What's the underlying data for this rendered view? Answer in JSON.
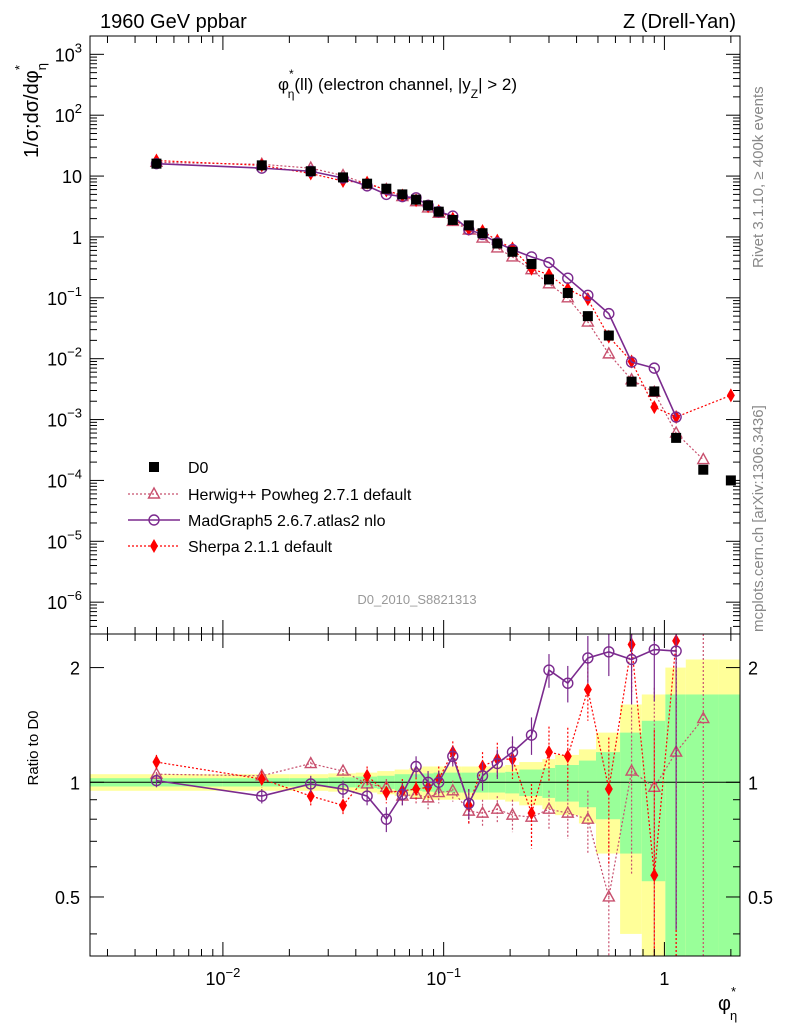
{
  "chart_data": {
    "type": "scatter",
    "header_left": "1960 GeV ppbar",
    "header_right": "Z (Drell-Yan)",
    "title": {
      "main": "φ",
      "sup": "*",
      "sub": "η",
      "rest": "(ll) (electron channel, |y",
      "sub2": "Z",
      "end": "| > 2)"
    },
    "ylabel": "1/σ;dσ/dφ",
    "ylabel_sub": "η",
    "ylabel_sup": "*",
    "ratio_ylabel": "Ratio to D0",
    "xlabel": "φ",
    "xlabel_sup": "*",
    "xlabel_sub": "η",
    "side_text_top": "Rivet 3.1.10, ≥ 400k events",
    "side_text_bottom": "mcplots.cern.ch [arXiv:1306.3436]",
    "watermark": "D0_2010_S8821313",
    "xlim": [
      0.0025,
      2.2
    ],
    "ylim": [
      3e-07,
      2000
    ],
    "ratio_ylim": [
      0.35,
      2.45
    ],
    "x_ticks": [
      {
        "v": 0.01,
        "base": "10",
        "exp": "−2"
      },
      {
        "v": 0.1,
        "base": "10",
        "exp": "−1"
      },
      {
        "v": 1,
        "base": "1",
        "exp": ""
      }
    ],
    "y_ticks": [
      {
        "v": 1000,
        "base": "10",
        "exp": "3"
      },
      {
        "v": 100,
        "base": "10",
        "exp": "2"
      },
      {
        "v": 10,
        "base": "10",
        "exp": ""
      },
      {
        "v": 1,
        "base": "1",
        "exp": ""
      },
      {
        "v": 0.1,
        "base": "10",
        "exp": "−1"
      },
      {
        "v": 0.01,
        "base": "10",
        "exp": "−2"
      },
      {
        "v": 0.001,
        "base": "10",
        "exp": "−3"
      },
      {
        "v": 0.0001,
        "base": "10",
        "exp": "−4"
      },
      {
        "v": 1e-05,
        "base": "10",
        "exp": "−5"
      },
      {
        "v": 1e-06,
        "base": "10",
        "exp": "−6"
      }
    ],
    "ratio_ticks": [
      {
        "v": 0.5,
        "label": "0.5"
      },
      {
        "v": 1,
        "label": "1"
      },
      {
        "v": 2,
        "label": "2"
      }
    ],
    "x": [
      0.005,
      0.015,
      0.025,
      0.035,
      0.045,
      0.055,
      0.065,
      0.075,
      0.085,
      0.095,
      0.11,
      0.13,
      0.15,
      0.175,
      0.205,
      0.25,
      0.3,
      0.365,
      0.45,
      0.56,
      0.71,
      0.9,
      1.13,
      1.5,
      2.0
    ],
    "x_edges": [
      0.0,
      0.01,
      0.02,
      0.03,
      0.04,
      0.05,
      0.06,
      0.07,
      0.08,
      0.09,
      0.1,
      0.12,
      0.14,
      0.16,
      0.19,
      0.22,
      0.28,
      0.32,
      0.41,
      0.49,
      0.63,
      0.79,
      1.01,
      1.25,
      1.75,
      2.25
    ],
    "data_band": {
      "stat": [
        0.025,
        0.025,
        0.025,
        0.03,
        0.035,
        0.04,
        0.05,
        0.05,
        0.055,
        0.06,
        0.06,
        0.06,
        0.06,
        0.06,
        0.065,
        0.08,
        0.09,
        0.11,
        0.14,
        0.2,
        0.35,
        0.45,
        0.7,
        0.7,
        0.7
      ],
      "total": [
        0.05,
        0.05,
        0.05,
        0.055,
        0.06,
        0.07,
        0.08,
        0.09,
        0.1,
        0.1,
        0.1,
        0.1,
        0.1,
        0.1,
        0.11,
        0.13,
        0.15,
        0.18,
        0.22,
        0.35,
        0.6,
        0.7,
        1.0,
        1.1,
        1.1
      ]
    },
    "series": [
      {
        "name": "D0",
        "color": "#000000",
        "marker": "square",
        "values": [
          16,
          15,
          12,
          9.5,
          7.5,
          6.2,
          5.0,
          4.1,
          3.3,
          2.6,
          1.9,
          1.55,
          1.15,
          0.78,
          0.57,
          0.36,
          0.2,
          0.12,
          0.05,
          0.024,
          0.0042,
          0.0029,
          0.0005,
          0.00015,
          0.0001
        ],
        "ratio": [
          1,
          1,
          1,
          1,
          1,
          1,
          1,
          1,
          1,
          1,
          1,
          1,
          1,
          1,
          1,
          1,
          1,
          1,
          1,
          1,
          1,
          1,
          1,
          1,
          1
        ]
      },
      {
        "name": "Herwig++ Powheg 2.7.1 default",
        "color": "#c8506e",
        "marker": "triangle",
        "dash": true,
        "values": [
          16.8,
          15.6,
          13.5,
          10.2,
          7.4,
          6.0,
          4.6,
          3.8,
          3.0,
          2.45,
          1.8,
          1.3,
          0.96,
          0.66,
          0.47,
          0.29,
          0.17,
          0.1,
          0.04,
          0.012,
          0.0045,
          0.0028,
          0.0006,
          0.00022,
          null
        ],
        "ratio": [
          1.05,
          1.04,
          1.12,
          1.07,
          0.99,
          0.97,
          0.92,
          0.93,
          0.91,
          0.94,
          0.95,
          0.84,
          0.83,
          0.85,
          0.82,
          0.81,
          0.85,
          0.83,
          0.8,
          0.5,
          1.07,
          0.97,
          1.2,
          1.47,
          null
        ],
        "ratio_err": [
          0.04,
          0.04,
          0.04,
          0.04,
          0.05,
          0.05,
          0.05,
          0.05,
          0.06,
          0.06,
          0.06,
          0.07,
          0.07,
          0.07,
          0.08,
          0.09,
          0.1,
          0.12,
          0.15,
          0.2,
          0.5,
          0.8,
          1.5,
          1.5,
          null
        ]
      },
      {
        "name": "MadGraph5 2.6.7.atlas2 nlo",
        "color": "#7b2a8e",
        "marker": "circle",
        "dash": false,
        "values": [
          16.0,
          13.5,
          12.0,
          9.3,
          6.9,
          5.0,
          4.6,
          4.4,
          3.3,
          2.6,
          2.2,
          1.32,
          1.1,
          0.8,
          0.62,
          0.47,
          0.38,
          0.21,
          0.11,
          0.055,
          0.0088,
          0.007,
          0.0011,
          null,
          null
        ],
        "ratio": [
          1.01,
          0.92,
          0.99,
          0.96,
          0.92,
          0.8,
          0.93,
          1.1,
          1.0,
          1.0,
          1.17,
          0.88,
          1.04,
          1.12,
          1.2,
          1.33,
          1.97,
          1.82,
          2.12,
          2.2,
          2.1,
          2.23,
          2.21,
          null,
          null
        ],
        "ratio_err": [
          0.04,
          0.04,
          0.05,
          0.05,
          0.05,
          0.06,
          0.06,
          0.07,
          0.07,
          0.07,
          0.07,
          0.08,
          0.09,
          0.1,
          0.12,
          0.15,
          0.2,
          0.2,
          0.3,
          0.3,
          0.5,
          0.6,
          1.8,
          null,
          null
        ]
      },
      {
        "name": "Sherpa 2.1.1 default",
        "color": "#ff0000",
        "marker": "diamond",
        "dash": true,
        "values": [
          18,
          15,
          11,
          8.3,
          7.8,
          5.8,
          4.8,
          4.0,
          3.2,
          2.65,
          2.0,
          1.35,
          1.25,
          0.87,
          0.65,
          0.3,
          0.24,
          0.14,
          0.095,
          0.023,
          0.009,
          0.0016,
          0.0011,
          null,
          0.0025
        ],
        "ratio": [
          1.13,
          1.02,
          0.92,
          0.87,
          1.04,
          0.94,
          0.95,
          0.96,
          0.97,
          1.02,
          1.2,
          0.87,
          1.1,
          1.15,
          1.15,
          0.83,
          1.2,
          1.17,
          1.75,
          0.96,
          2.3,
          0.57,
          2.35,
          null,
          null
        ],
        "ratio_err": [
          0.05,
          0.05,
          0.05,
          0.05,
          0.06,
          0.06,
          0.07,
          0.07,
          0.07,
          0.08,
          0.08,
          0.09,
          0.1,
          0.12,
          0.13,
          0.16,
          0.2,
          0.22,
          0.3,
          0.35,
          0.6,
          0.8,
          2.0,
          null,
          null
        ]
      }
    ]
  }
}
